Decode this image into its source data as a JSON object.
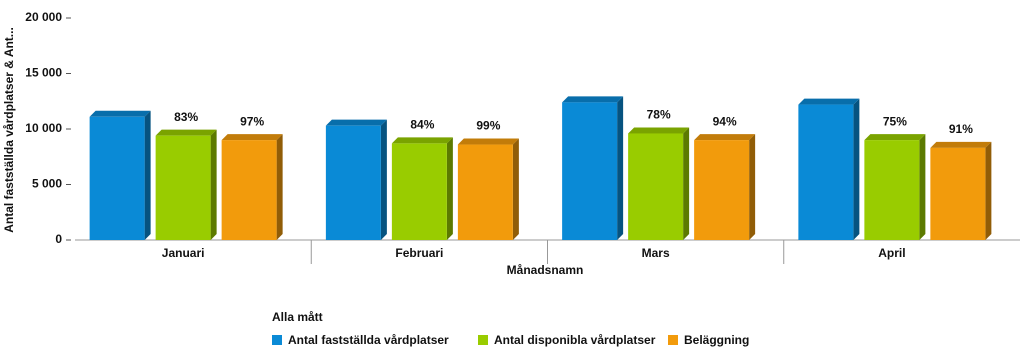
{
  "chart_data": {
    "type": "bar3d",
    "y_label": "Antal fastställda vårdplatser & Ant...",
    "x_label": "Månadsnamn",
    "legend_title": "Alla mått",
    "categories": [
      "Januari",
      "Februari",
      "Mars",
      "April"
    ],
    "series": [
      {
        "name": "Antal fastställda vårdplatser",
        "color": "#0a8ad6",
        "values": [
          11100,
          10300,
          12400,
          12200
        ]
      },
      {
        "name": "Antal disponibla vårdplatser",
        "color": "#99cc00",
        "values": [
          9400,
          8700,
          9600,
          9000
        ],
        "point_labels": [
          "83%",
          "84%",
          "78%",
          "75%"
        ]
      },
      {
        "name": "Beläggning",
        "color": "#f29b0c",
        "values": [
          9000,
          8600,
          9000,
          8300
        ],
        "point_labels": [
          "97%",
          "99%",
          "94%",
          "91%"
        ]
      }
    ],
    "ylim": [
      0,
      20000
    ],
    "yticks": [
      0,
      {
        "value": 5000,
        "label": "5 000"
      },
      {
        "value": 10000,
        "label": "10 000"
      },
      {
        "value": 15000,
        "label": "15 000"
      },
      {
        "value": 20000,
        "label": "20 000"
      }
    ]
  }
}
